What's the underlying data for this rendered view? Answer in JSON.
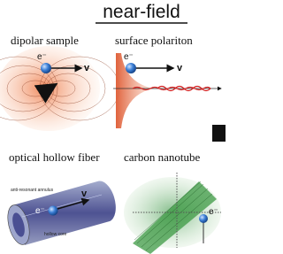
{
  "header": {
    "title": "near-field"
  },
  "panels": [
    {
      "label": "dipolar sample",
      "charge": "e⁻",
      "velocity": "v"
    },
    {
      "label": "surface polariton",
      "charge": "e⁻",
      "velocity": "v"
    },
    {
      "label": "optical hollow fiber",
      "charge": "e⁻",
      "velocity": "v",
      "annotations": [
        "anti-resonant annulus",
        "hollow core"
      ]
    },
    {
      "label": "carbon nanotube",
      "charge": "e⁻"
    }
  ]
}
